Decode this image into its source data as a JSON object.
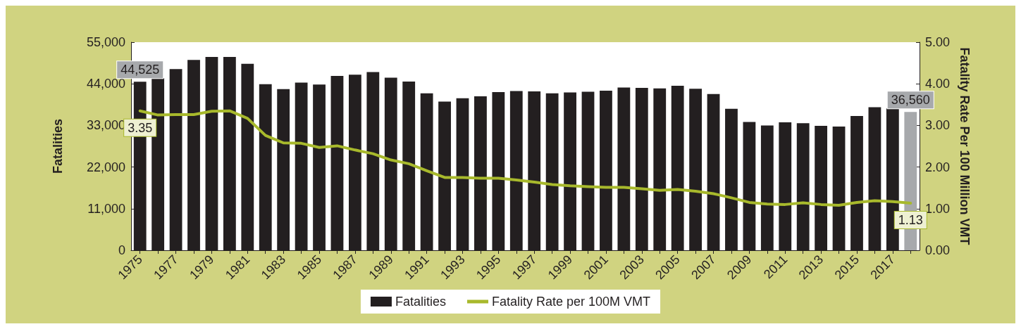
{
  "chart_data": {
    "type": "bar",
    "ylabel": "Fatalities",
    "y2label": "Fatality Rate Per 100 Million VMT",
    "categories": [
      "1975",
      null,
      "1977",
      null,
      "1979",
      null,
      "1981",
      null,
      "1983",
      null,
      "1985",
      null,
      "1987",
      null,
      "1989",
      null,
      "1991",
      null,
      "1993",
      null,
      "1995",
      null,
      "1997",
      null,
      "1999",
      null,
      "2001",
      null,
      "2003",
      null,
      "2005",
      null,
      "2007",
      null,
      "2009",
      null,
      "2011",
      null,
      "2013",
      null,
      "2015",
      null,
      "2017",
      null
    ],
    "series": [
      {
        "name": "Fatalities",
        "color": "#231f20",
        "colors": [
          "#231f20",
          "#231f20",
          "#231f20",
          "#231f20",
          "#231f20",
          "#231f20",
          "#231f20",
          "#231f20",
          "#231f20",
          "#231f20",
          "#231f20",
          "#231f20",
          "#231f20",
          "#231f20",
          "#231f20",
          "#231f20",
          "#231f20",
          "#231f20",
          "#231f20",
          "#231f20",
          "#231f20",
          "#231f20",
          "#231f20",
          "#231f20",
          "#231f20",
          "#231f20",
          "#231f20",
          "#231f20",
          "#231f20",
          "#231f20",
          "#231f20",
          "#231f20",
          "#231f20",
          "#231f20",
          "#231f20",
          "#231f20",
          "#231f20",
          "#231f20",
          "#231f20",
          "#231f20",
          "#231f20",
          "#231f20",
          "#231f20",
          "#a7a9ac"
        ],
        "values": [
          44525,
          45500,
          47900,
          50300,
          51100,
          51100,
          49300,
          43900,
          42600,
          44300,
          43800,
          46100,
          46400,
          47100,
          45600,
          44600,
          41500,
          39300,
          40200,
          40700,
          41800,
          42100,
          42000,
          41500,
          41700,
          41900,
          42200,
          43000,
          42900,
          42800,
          43500,
          42700,
          41300,
          37400,
          33900,
          33000,
          33800,
          33600,
          32900,
          32700,
          35500,
          37800,
          37500,
          36560
        ],
        "value_labels": [
          "44,525",
          null,
          null,
          null,
          null,
          null,
          null,
          null,
          null,
          null,
          null,
          null,
          null,
          null,
          null,
          null,
          null,
          null,
          null,
          null,
          null,
          null,
          null,
          null,
          null,
          null,
          null,
          null,
          null,
          null,
          null,
          null,
          null,
          null,
          null,
          null,
          null,
          null,
          null,
          null,
          null,
          null,
          null,
          "36,560"
        ]
      },
      {
        "name": "Fatality Rate per 100M VMT",
        "type": "line",
        "axis": "y2",
        "color": "#a8b92c",
        "values": [
          3.35,
          3.25,
          3.26,
          3.26,
          3.34,
          3.35,
          3.17,
          2.76,
          2.58,
          2.57,
          2.47,
          2.51,
          2.41,
          2.32,
          2.17,
          2.08,
          1.91,
          1.75,
          1.75,
          1.73,
          1.73,
          1.69,
          1.64,
          1.58,
          1.55,
          1.53,
          1.51,
          1.51,
          1.48,
          1.44,
          1.46,
          1.42,
          1.36,
          1.26,
          1.15,
          1.11,
          1.1,
          1.14,
          1.1,
          1.08,
          1.15,
          1.19,
          1.17,
          1.13
        ],
        "value_labels": [
          "3.35",
          null,
          null,
          null,
          null,
          null,
          null,
          null,
          null,
          null,
          null,
          null,
          null,
          null,
          null,
          null,
          null,
          null,
          null,
          null,
          null,
          null,
          null,
          null,
          null,
          null,
          null,
          null,
          null,
          null,
          null,
          null,
          null,
          null,
          null,
          null,
          null,
          null,
          null,
          null,
          null,
          null,
          null,
          "1.13"
        ]
      }
    ],
    "ylim": [
      0,
      55000
    ],
    "yticks": [
      0,
      {
        "value": 11000,
        "label": "11,000"
      },
      {
        "value": 22000,
        "label": "22,000"
      },
      {
        "value": 33000,
        "label": "33,000"
      },
      {
        "value": 44000,
        "label": "44,000"
      },
      {
        "value": 55000,
        "label": "55,000"
      }
    ],
    "y2lim": [
      0,
      5
    ],
    "y2ticks": [
      {
        "value": 0,
        "label": "0.00"
      },
      {
        "value": 1,
        "label": "1.00"
      },
      {
        "value": 2,
        "label": "2.00"
      },
      {
        "value": 3,
        "label": "3.00"
      },
      {
        "value": 4,
        "label": "4.00"
      },
      {
        "value": 5,
        "label": "5.00"
      }
    ],
    "legend": "bottom",
    "grid": false
  }
}
